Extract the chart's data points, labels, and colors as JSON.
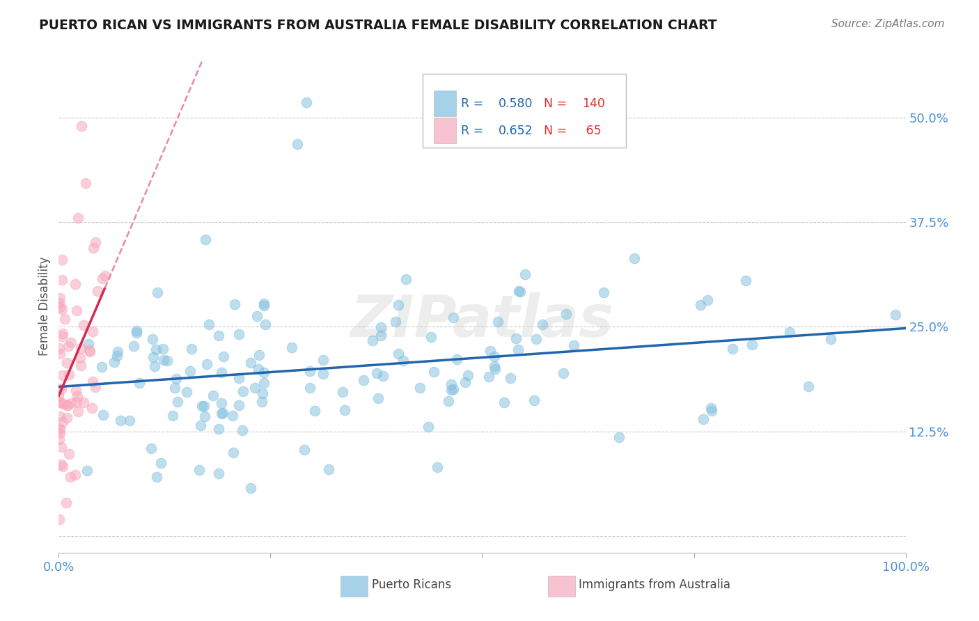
{
  "title": "PUERTO RICAN VS IMMIGRANTS FROM AUSTRALIA FEMALE DISABILITY CORRELATION CHART",
  "source": "Source: ZipAtlas.com",
  "ylabel": "Female Disability",
  "xlim": [
    0.0,
    1.0
  ],
  "ylim": [
    -0.02,
    0.57
  ],
  "yticks": [
    0.0,
    0.125,
    0.25,
    0.375,
    0.5
  ],
  "ytick_labels": [
    "",
    "12.5%",
    "25.0%",
    "37.5%",
    "50.0%"
  ],
  "xticks": [
    0.0,
    0.25,
    0.5,
    0.75,
    1.0
  ],
  "xtick_labels": [
    "0.0%",
    "",
    "",
    "",
    "100.0%"
  ],
  "blue_color": "#7fbfdf",
  "pink_color": "#f7a8bc",
  "blue_line_color": "#2166ac",
  "pink_line_color": "#d6294e",
  "pink_dashed_color": "#e88aa0",
  "watermark": "ZIPatlas",
  "R_blue": 0.58,
  "N_blue": 140,
  "R_pink": 0.652,
  "N_pink": 65,
  "background_color": "#ffffff",
  "grid_color": "#cccccc",
  "title_color": "#1a1a1a",
  "axis_label_color": "#4a90d9",
  "legend_R_color": "#2166ac",
  "legend_N_color": "#e03030",
  "blue_seed": 42,
  "pink_seed": 13,
  "blue_intercept": 0.155,
  "blue_slope": 0.095,
  "pink_intercept": 0.17,
  "pink_slope": 2.2
}
